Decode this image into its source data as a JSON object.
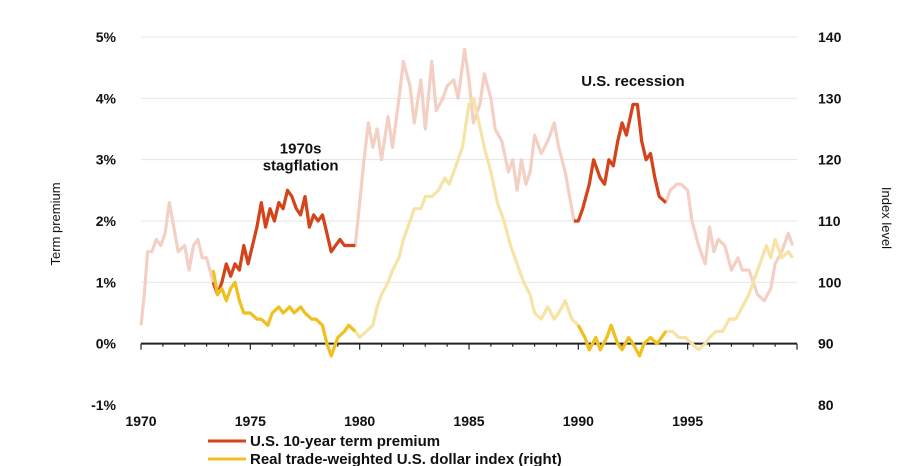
{
  "chart_data": {
    "type": "line",
    "x_ticks": [
      "1970",
      "1975",
      "1980",
      "1985",
      "1990",
      "1995"
    ],
    "left_axis": {
      "label": "Term premium",
      "ticks": [
        "5%",
        "4%",
        "3%",
        "2%",
        "1%",
        "0%",
        "-1%"
      ],
      "range": [
        -1,
        5
      ]
    },
    "right_axis": {
      "label": "Index level",
      "ticks": [
        "140",
        "130",
        "120",
        "110",
        "100",
        "90",
        "80"
      ],
      "range": [
        80,
        140
      ]
    },
    "annotations": [
      {
        "lines": [
          "1970s",
          "stagflation"
        ],
        "x": 1977.3,
        "y": 3.1
      },
      {
        "lines": [
          "U.S. recession"
        ],
        "x": 1992.5,
        "y": 4.2
      }
    ],
    "series": [
      {
        "name": "U.S. 10-year term premium",
        "axis": "left",
        "color": "#d4431a",
        "faded_color": "#f3cfc4",
        "highlight_ranges": [
          [
            1973.3,
            1979.8
          ],
          [
            1989.8,
            1994.0
          ]
        ],
        "points": [
          [
            1970.0,
            0.3
          ],
          [
            1970.15,
            0.8
          ],
          [
            1970.3,
            1.5
          ],
          [
            1970.5,
            1.5
          ],
          [
            1970.7,
            1.7
          ],
          [
            1970.9,
            1.6
          ],
          [
            1971.1,
            1.8
          ],
          [
            1971.3,
            2.3
          ],
          [
            1971.5,
            1.9
          ],
          [
            1971.7,
            1.5
          ],
          [
            1972.0,
            1.6
          ],
          [
            1972.2,
            1.2
          ],
          [
            1972.4,
            1.6
          ],
          [
            1972.6,
            1.7
          ],
          [
            1972.8,
            1.4
          ],
          [
            1973.0,
            1.4
          ],
          [
            1973.3,
            1.0
          ],
          [
            1973.5,
            0.8
          ],
          [
            1973.7,
            1.0
          ],
          [
            1973.9,
            1.3
          ],
          [
            1974.1,
            1.1
          ],
          [
            1974.3,
            1.3
          ],
          [
            1974.5,
            1.2
          ],
          [
            1974.7,
            1.6
          ],
          [
            1974.9,
            1.3
          ],
          [
            1975.1,
            1.6
          ],
          [
            1975.3,
            1.9
          ],
          [
            1975.5,
            2.3
          ],
          [
            1975.7,
            1.9
          ],
          [
            1975.9,
            2.2
          ],
          [
            1976.1,
            2.0
          ],
          [
            1976.3,
            2.3
          ],
          [
            1976.5,
            2.2
          ],
          [
            1976.7,
            2.5
          ],
          [
            1976.9,
            2.4
          ],
          [
            1977.1,
            2.2
          ],
          [
            1977.3,
            2.1
          ],
          [
            1977.5,
            2.4
          ],
          [
            1977.7,
            1.9
          ],
          [
            1977.9,
            2.1
          ],
          [
            1978.1,
            2.0
          ],
          [
            1978.3,
            2.1
          ],
          [
            1978.5,
            1.8
          ],
          [
            1978.7,
            1.5
          ],
          [
            1978.9,
            1.6
          ],
          [
            1979.1,
            1.7
          ],
          [
            1979.3,
            1.6
          ],
          [
            1979.6,
            1.6
          ],
          [
            1979.8,
            1.6
          ],
          [
            1980.0,
            2.3
          ],
          [
            1980.2,
            3.0
          ],
          [
            1980.4,
            3.6
          ],
          [
            1980.6,
            3.2
          ],
          [
            1980.8,
            3.5
          ],
          [
            1981.0,
            3.0
          ],
          [
            1981.3,
            3.7
          ],
          [
            1981.5,
            3.2
          ],
          [
            1981.8,
            4.0
          ],
          [
            1982.0,
            4.6
          ],
          [
            1982.3,
            4.2
          ],
          [
            1982.5,
            3.6
          ],
          [
            1982.8,
            4.3
          ],
          [
            1983.0,
            3.5
          ],
          [
            1983.3,
            4.6
          ],
          [
            1983.5,
            3.8
          ],
          [
            1983.8,
            4.0
          ],
          [
            1984.0,
            4.2
          ],
          [
            1984.3,
            4.3
          ],
          [
            1984.5,
            4.0
          ],
          [
            1984.8,
            4.8
          ],
          [
            1985.0,
            4.3
          ],
          [
            1985.2,
            3.6
          ],
          [
            1985.5,
            3.9
          ],
          [
            1985.7,
            4.4
          ],
          [
            1986.0,
            4.0
          ],
          [
            1986.2,
            3.5
          ],
          [
            1986.5,
            3.3
          ],
          [
            1986.8,
            2.8
          ],
          [
            1987.0,
            3.0
          ],
          [
            1987.2,
            2.5
          ],
          [
            1987.4,
            3.0
          ],
          [
            1987.6,
            2.6
          ],
          [
            1987.8,
            2.8
          ],
          [
            1988.0,
            3.4
          ],
          [
            1988.3,
            3.1
          ],
          [
            1988.6,
            3.3
          ],
          [
            1988.9,
            3.6
          ],
          [
            1989.1,
            3.2
          ],
          [
            1989.4,
            2.8
          ],
          [
            1989.6,
            2.4
          ],
          [
            1989.8,
            2.0
          ],
          [
            1990.0,
            2.0
          ],
          [
            1990.2,
            2.2
          ],
          [
            1990.5,
            2.6
          ],
          [
            1990.7,
            3.0
          ],
          [
            1991.0,
            2.7
          ],
          [
            1991.2,
            2.6
          ],
          [
            1991.4,
            3.0
          ],
          [
            1991.6,
            2.9
          ],
          [
            1991.8,
            3.3
          ],
          [
            1992.0,
            3.6
          ],
          [
            1992.2,
            3.4
          ],
          [
            1992.5,
            3.9
          ],
          [
            1992.7,
            3.9
          ],
          [
            1992.9,
            3.3
          ],
          [
            1993.1,
            3.0
          ],
          [
            1993.3,
            3.1
          ],
          [
            1993.5,
            2.7
          ],
          [
            1993.7,
            2.4
          ],
          [
            1994.0,
            2.3
          ],
          [
            1994.2,
            2.5
          ],
          [
            1994.5,
            2.6
          ],
          [
            1994.7,
            2.6
          ],
          [
            1995.0,
            2.5
          ],
          [
            1995.2,
            2.0
          ],
          [
            1995.5,
            1.6
          ],
          [
            1995.8,
            1.3
          ],
          [
            1996.0,
            1.9
          ],
          [
            1996.2,
            1.5
          ],
          [
            1996.4,
            1.7
          ],
          [
            1996.7,
            1.6
          ],
          [
            1997.0,
            1.2
          ],
          [
            1997.3,
            1.4
          ],
          [
            1997.5,
            1.2
          ],
          [
            1997.8,
            1.2
          ],
          [
            1998.0,
            1.0
          ],
          [
            1998.2,
            0.8
          ],
          [
            1998.5,
            0.7
          ],
          [
            1998.8,
            0.9
          ],
          [
            1999.0,
            1.3
          ],
          [
            1999.3,
            1.5
          ],
          [
            1999.6,
            1.8
          ],
          [
            1999.8,
            1.6
          ]
        ]
      },
      {
        "name": "Real trade-weighted U.S. dollar index (right)",
        "axis": "right",
        "color": "#f0c020",
        "faded_color": "#f6e3a6",
        "highlight_ranges": [
          [
            1973.3,
            1979.8
          ],
          [
            1989.8,
            1994.0
          ]
        ],
        "points": [
          [
            1973.3,
            102.0
          ],
          [
            1973.5,
            98.0
          ],
          [
            1973.7,
            99.0
          ],
          [
            1973.9,
            97.0
          ],
          [
            1974.1,
            99.0
          ],
          [
            1974.3,
            100.0
          ],
          [
            1974.5,
            97.0
          ],
          [
            1974.7,
            95.0
          ],
          [
            1975.0,
            95.0
          ],
          [
            1975.3,
            94.0
          ],
          [
            1975.5,
            94.0
          ],
          [
            1975.8,
            93.0
          ],
          [
            1976.0,
            95.0
          ],
          [
            1976.3,
            96.0
          ],
          [
            1976.5,
            95.0
          ],
          [
            1976.8,
            96.0
          ],
          [
            1977.0,
            95.0
          ],
          [
            1977.3,
            96.0
          ],
          [
            1977.5,
            95.0
          ],
          [
            1977.8,
            94.0
          ],
          [
            1978.0,
            94.0
          ],
          [
            1978.3,
            93.0
          ],
          [
            1978.5,
            90.0
          ],
          [
            1978.7,
            88.0
          ],
          [
            1979.0,
            91.0
          ],
          [
            1979.3,
            92.0
          ],
          [
            1979.5,
            93.0
          ],
          [
            1979.8,
            92.0
          ],
          [
            1980.0,
            91.0
          ],
          [
            1980.3,
            92.0
          ],
          [
            1980.6,
            93.0
          ],
          [
            1980.8,
            96.0
          ],
          [
            1981.0,
            98.0
          ],
          [
            1981.3,
            100.0
          ],
          [
            1981.5,
            102.0
          ],
          [
            1981.8,
            104.0
          ],
          [
            1982.0,
            107.0
          ],
          [
            1982.3,
            110.0
          ],
          [
            1982.5,
            112.0
          ],
          [
            1982.8,
            112.0
          ],
          [
            1983.0,
            114.0
          ],
          [
            1983.3,
            114.0
          ],
          [
            1983.6,
            115.0
          ],
          [
            1983.9,
            117.0
          ],
          [
            1984.1,
            116.0
          ],
          [
            1984.4,
            119.0
          ],
          [
            1984.7,
            122.0
          ],
          [
            1985.0,
            129.0
          ],
          [
            1985.2,
            130.0
          ],
          [
            1985.4,
            127.0
          ],
          [
            1985.7,
            122.0
          ],
          [
            1986.0,
            118.0
          ],
          [
            1986.3,
            113.0
          ],
          [
            1986.6,
            110.0
          ],
          [
            1986.9,
            106.0
          ],
          [
            1987.2,
            103.0
          ],
          [
            1987.5,
            100.0
          ],
          [
            1987.8,
            98.0
          ],
          [
            1988.0,
            95.0
          ],
          [
            1988.3,
            94.0
          ],
          [
            1988.6,
            96.0
          ],
          [
            1988.9,
            94.0
          ],
          [
            1989.1,
            95.0
          ],
          [
            1989.4,
            97.0
          ],
          [
            1989.7,
            94.0
          ],
          [
            1990.0,
            93.0
          ],
          [
            1990.3,
            91.0
          ],
          [
            1990.5,
            89.0
          ],
          [
            1990.8,
            91.0
          ],
          [
            1991.0,
            89.0
          ],
          [
            1991.3,
            91.0
          ],
          [
            1991.5,
            93.0
          ],
          [
            1991.8,
            90.0
          ],
          [
            1992.0,
            89.0
          ],
          [
            1992.3,
            91.0
          ],
          [
            1992.5,
            90.0
          ],
          [
            1992.8,
            88.0
          ],
          [
            1993.0,
            90.0
          ],
          [
            1993.3,
            91.0
          ],
          [
            1993.6,
            90.0
          ],
          [
            1994.0,
            92.0
          ],
          [
            1994.3,
            92.0
          ],
          [
            1994.6,
            91.0
          ],
          [
            1994.9,
            91.0
          ],
          [
            1995.2,
            90.0
          ],
          [
            1995.5,
            89.0
          ],
          [
            1995.8,
            90.0
          ],
          [
            1996.0,
            91.0
          ],
          [
            1996.3,
            92.0
          ],
          [
            1996.6,
            92.0
          ],
          [
            1996.9,
            94.0
          ],
          [
            1997.2,
            94.0
          ],
          [
            1997.5,
            96.0
          ],
          [
            1997.8,
            98.0
          ],
          [
            1998.0,
            100.0
          ],
          [
            1998.3,
            103.0
          ],
          [
            1998.6,
            106.0
          ],
          [
            1998.8,
            104.0
          ],
          [
            1999.0,
            107.0
          ],
          [
            1999.3,
            104.0
          ],
          [
            1999.6,
            105.0
          ],
          [
            1999.8,
            104.0
          ]
        ]
      }
    ]
  }
}
